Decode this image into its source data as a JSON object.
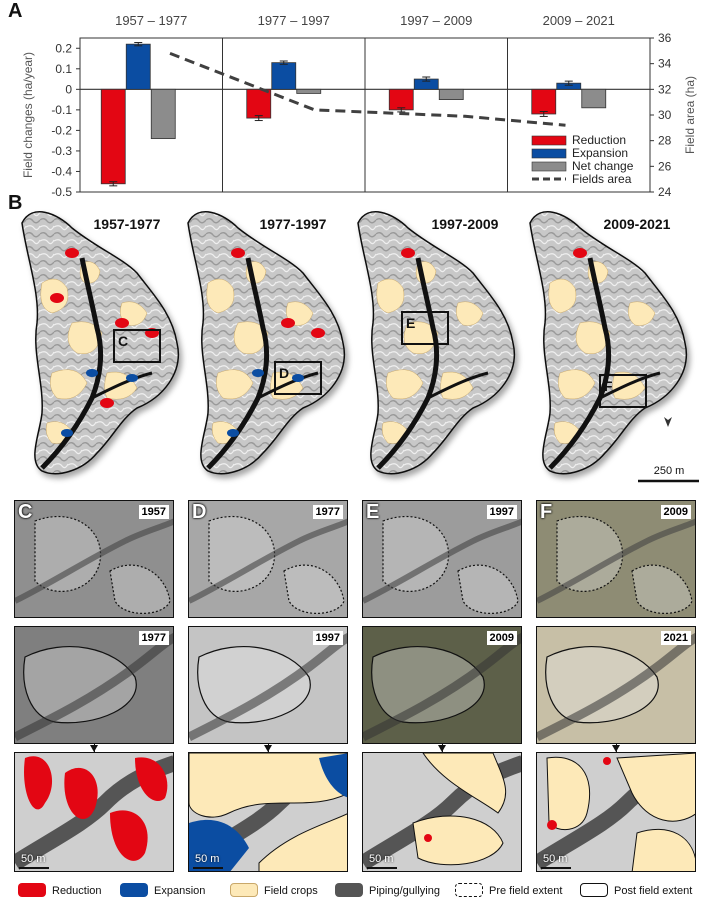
{
  "panel_a": {
    "letter": "A",
    "period_labels": [
      "1957 – 1977",
      "1977 – 1997",
      "1997 – 2009",
      "2009 – 2021"
    ],
    "ylabel_left": "Field changes (ha/year)",
    "ylabel_right": "Field area (ha)",
    "left_ticks": [
      "0.2",
      "0.1",
      "0",
      "-0.1",
      "-0.2",
      "-0.3",
      "-0.4",
      "-0.5"
    ],
    "right_ticks": [
      "36",
      "34",
      "32",
      "30",
      "28",
      "26",
      "24"
    ],
    "legend": [
      "Reduction",
      "Expansion",
      "Net change",
      "Fields area"
    ]
  },
  "chart_data": {
    "type": "bar",
    "categories": [
      "1957 – 1977",
      "1977 – 1997",
      "1997 – 2009",
      "2009 – 2021"
    ],
    "series": [
      {
        "name": "Reduction",
        "values": [
          -0.46,
          -0.14,
          -0.1,
          -0.12
        ],
        "errors": [
          0.01,
          0.012,
          0.01,
          0.012
        ]
      },
      {
        "name": "Expansion",
        "values": [
          0.22,
          0.13,
          0.05,
          0.03
        ],
        "errors": [
          0.008,
          0.008,
          0.01,
          0.01
        ]
      },
      {
        "name": "Net change",
        "values": [
          -0.24,
          -0.02,
          -0.05,
          -0.09
        ]
      }
    ],
    "line": {
      "name": "Fields area",
      "x": [
        "1977",
        "1997",
        "2009",
        "2021"
      ],
      "values": [
        34.8,
        30.4,
        29.9,
        29.2
      ]
    },
    "ylim_left": [
      -0.5,
      0.25
    ],
    "ylim_right": [
      24,
      36
    ],
    "colors": {
      "Reduction": "#e30613",
      "Expansion": "#0b4da2",
      "Net change": "#8c8c8c",
      "Fields area": "#404040"
    }
  },
  "panel_b": {
    "letter": "B",
    "map_titles": [
      "1957-1977",
      "1977-1997",
      "1997-2009",
      "2009-2021"
    ],
    "box_labels": [
      "C",
      "D",
      "E",
      "F"
    ],
    "scale_label": "250 m"
  },
  "insets": [
    {
      "letter": "C",
      "top_year": "1957",
      "mid_year": "1977",
      "scale": "50 m"
    },
    {
      "letter": "D",
      "top_year": "1977",
      "mid_year": "1997",
      "scale": "50 m"
    },
    {
      "letter": "E",
      "top_year": "1997",
      "mid_year": "2009",
      "scale": "50 m"
    },
    {
      "letter": "F",
      "top_year": "2009",
      "mid_year": "2021",
      "scale": "50 m"
    }
  ],
  "legend_bottom": [
    "Reduction",
    "Expansion",
    "Field crops",
    "Piping/gullying",
    "Pre field extent",
    "Post field extent"
  ],
  "colors": {
    "reduction": "#e30613",
    "expansion": "#0b4da2",
    "field": "#fde9b8",
    "piping": "#555555"
  }
}
